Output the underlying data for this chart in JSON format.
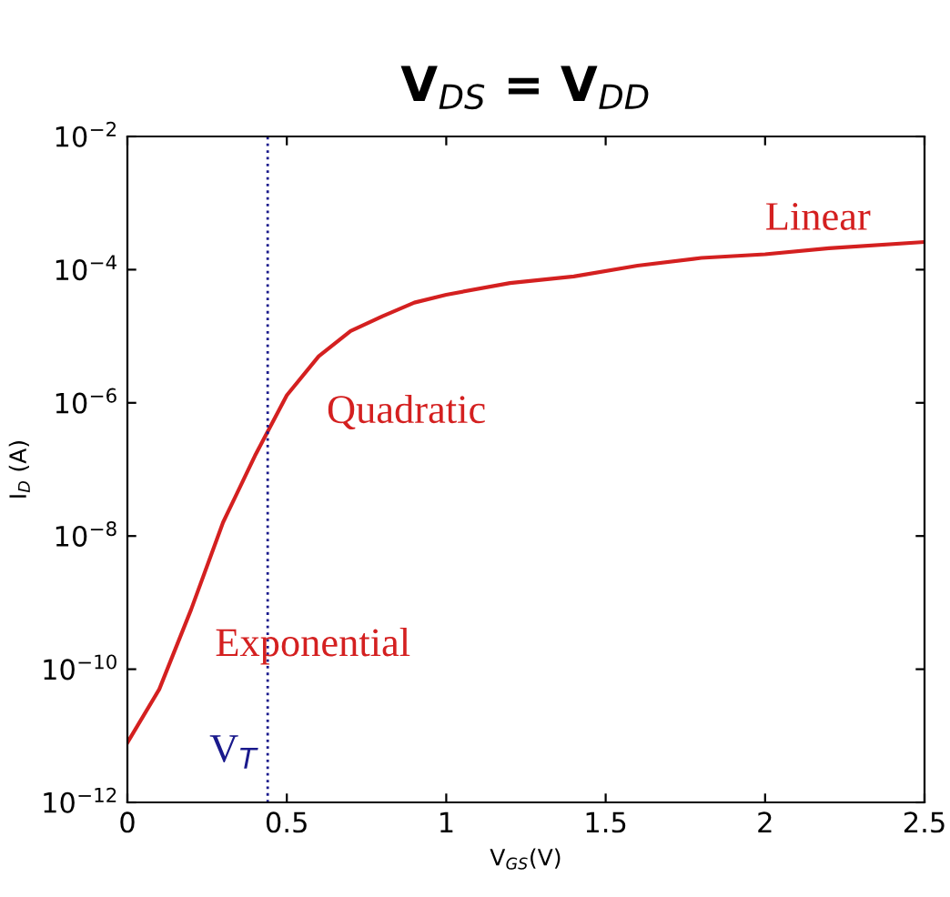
{
  "chart_data": {
    "type": "line",
    "title": "V$_{DS}$ = V$_{DD}$",
    "xlabel": "V$_{GS}$(V)",
    "ylabel": "I$_{D}$ (A)",
    "log": "y",
    "x": [
      0,
      0.1,
      0.2,
      0.3,
      0.4,
      0.5,
      0.6,
      0.7,
      0.8,
      0.9,
      1.0,
      1.2,
      1.4,
      1.6,
      1.8,
      2.0,
      2.2,
      2.5
    ],
    "series": [
      {
        "color": "#d42020",
        "values": [
          7.9e-12,
          5e-11,
          7.9e-10,
          1.6e-08,
          1.6e-07,
          1.3e-06,
          5e-06,
          1.2e-05,
          2e-05,
          3.2e-05,
          4.2e-05,
          6.3e-05,
          7.9e-05,
          0.000115,
          0.00015,
          0.00017,
          0.00021,
          0.00026
        ]
      }
    ],
    "xlim": [
      0,
      2.5
    ],
    "xticks": [
      0,
      0.5,
      1,
      1.5,
      2,
      2.5
    ],
    "ylim": [
      1e-12,
      0.01
    ],
    "yticks": [
      {
        "value": 1e-12,
        "label": "10$^{−12}$"
      },
      {
        "value": 1e-10,
        "label": "10$^{−10}$"
      },
      {
        "value": 1e-08,
        "label": "10$^{−8}$"
      },
      {
        "value": 1e-06,
        "label": "10$^{−6}$"
      },
      {
        "value": 0.0001,
        "label": "10$^{−4}$"
      },
      {
        "value": 0.01,
        "label": "10$^{−2}$"
      }
    ],
    "ref_lines": [
      {
        "axis": "x",
        "value": 0.44,
        "label": "V$_{T}$",
        "color": "#1a1a8c",
        "line_style": "dotted"
      }
    ],
    "annotations": [
      "Linear",
      "Quadratic",
      "Exponential"
    ],
    "grid": false,
    "legend": false,
    "marker": "none",
    "line_style": "solid"
  }
}
